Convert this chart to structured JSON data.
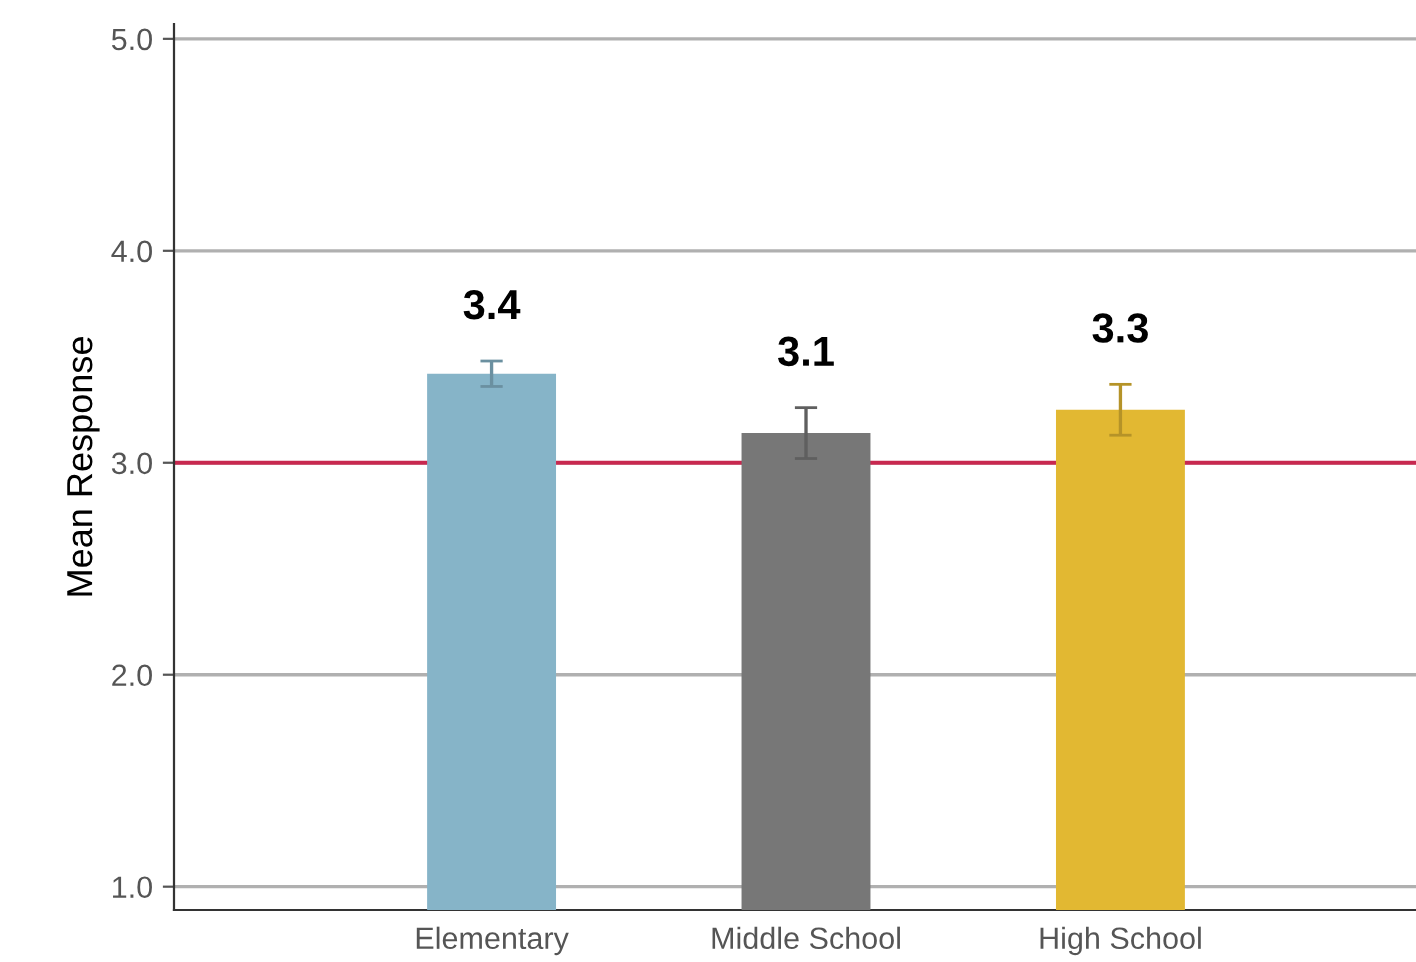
{
  "chart_data": {
    "type": "bar",
    "ylabel": "Mean Response",
    "categories": [
      "Elementary",
      "Middle School",
      "High School"
    ],
    "values": [
      3.42,
      3.14,
      3.25
    ],
    "colors": [
      "#86b4c8",
      "#777777",
      "#e2b832"
    ],
    "errors": [
      0.06,
      0.12,
      0.12
    ],
    "value_labels": [
      "3.4",
      "3.1",
      "3.3"
    ],
    "ylim": [
      0.89,
      5.07
    ],
    "yticks": [
      {
        "value": 1,
        "label": "1.0"
      },
      {
        "value": 2,
        "label": "2.0"
      },
      {
        "value": 3,
        "label": "3.0"
      },
      {
        "value": 4,
        "label": "4.0"
      },
      {
        "value": 5,
        "label": "5.0"
      }
    ],
    "ref_lines": [
      {
        "axis": "y",
        "value": 3,
        "color": "#c8284f"
      }
    ],
    "grid": "y",
    "legend": false
  }
}
